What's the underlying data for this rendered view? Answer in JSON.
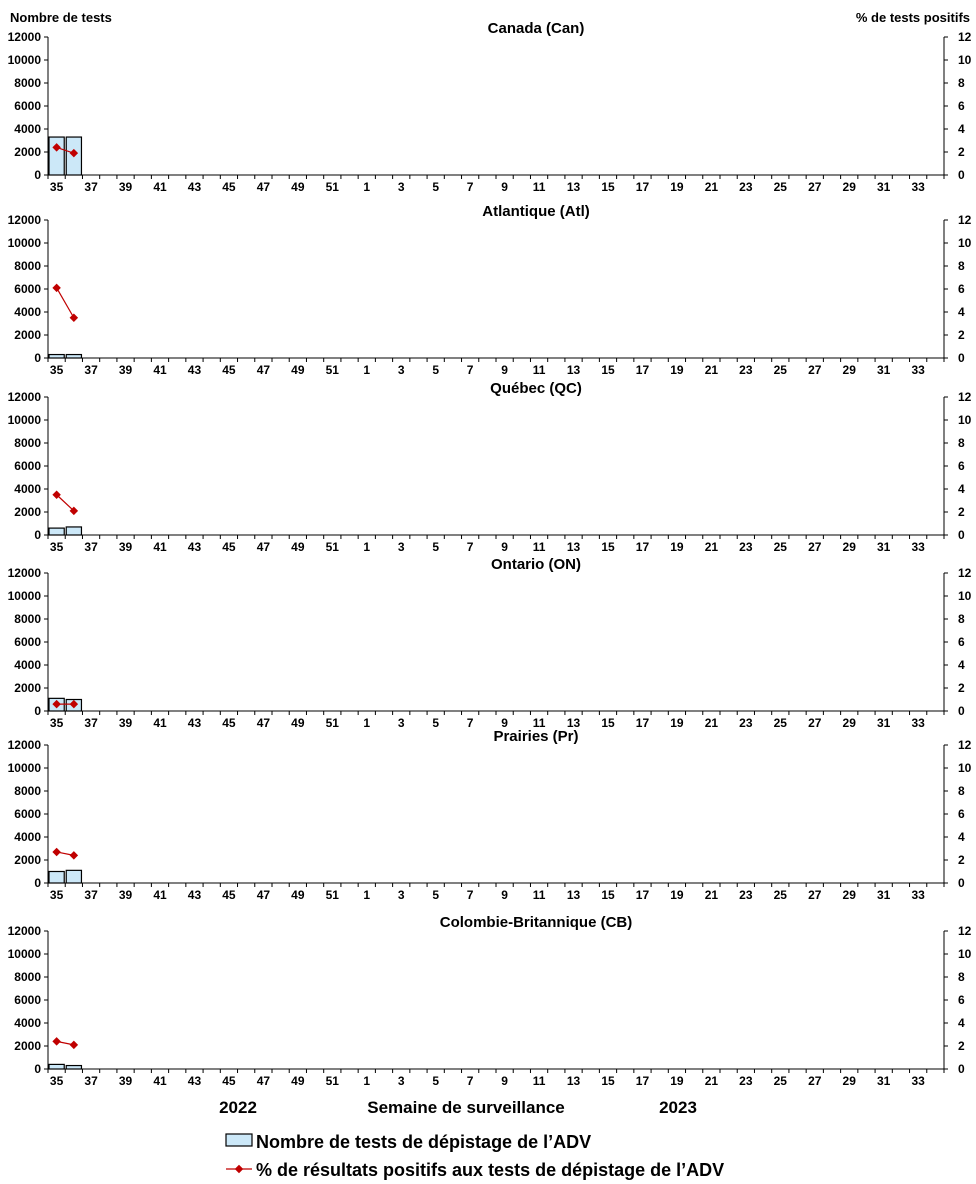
{
  "chart_data": {
    "type": "bar",
    "y_left_label": "Nombre de tests",
    "y_right_label": "% de tests positifs",
    "xlabel": "Semaine de surveillance",
    "year_labels": [
      "2022",
      "2023"
    ],
    "x_ticks": [
      "35",
      "37",
      "39",
      "41",
      "43",
      "45",
      "47",
      "49",
      "51",
      "1",
      "3",
      "5",
      "7",
      "9",
      "11",
      "13",
      "15",
      "17",
      "19",
      "21",
      "23",
      "25",
      "27",
      "29",
      "31",
      "33"
    ],
    "weeks": [
      "35",
      "36",
      "37",
      "38",
      "39",
      "40",
      "41",
      "42",
      "43",
      "44",
      "45",
      "46",
      "47",
      "48",
      "49",
      "50",
      "51",
      "52",
      "1",
      "2",
      "3",
      "4",
      "5",
      "6",
      "7",
      "8",
      "9",
      "10",
      "11",
      "12",
      "13",
      "14",
      "15",
      "16",
      "17",
      "18",
      "19",
      "20",
      "21",
      "22",
      "23",
      "24",
      "25",
      "26",
      "27",
      "28",
      "29",
      "30",
      "31",
      "32",
      "33",
      "34"
    ],
    "ylim_left": [
      0,
      12000
    ],
    "ylim_right": [
      0,
      12
    ],
    "y_left_ticks": [
      "0",
      "2000",
      "4000",
      "6000",
      "8000",
      "10000",
      "12000"
    ],
    "y_right_ticks": [
      "0",
      "2",
      "4",
      "6",
      "8",
      "10",
      "12"
    ],
    "colors": {
      "bars": "#cce8f8",
      "bar_border": "#000000",
      "line": "#c00000"
    },
    "panels": [
      {
        "title": "Canada (Can)",
        "tests": [
          3300,
          3300
        ],
        "pct_positive": [
          2.4,
          1.9
        ]
      },
      {
        "title": "Atlantique (Atl)",
        "tests": [
          300,
          300
        ],
        "pct_positive": [
          6.1,
          3.5
        ]
      },
      {
        "title": "Québec (QC)",
        "tests": [
          600,
          700
        ],
        "pct_positive": [
          3.5,
          2.1
        ]
      },
      {
        "title": "Ontario (ON)",
        "tests": [
          1100,
          1000
        ],
        "pct_positive": [
          0.6,
          0.6
        ]
      },
      {
        "title": "Prairies (Pr)",
        "tests": [
          1000,
          1100
        ],
        "pct_positive": [
          2.7,
          2.4
        ]
      },
      {
        "title": "Colombie-Britannique (CB)",
        "tests": [
          400,
          300
        ],
        "pct_positive": [
          2.4,
          2.1
        ]
      }
    ],
    "legend": [
      {
        "label": "Nombre de tests de dépistage de l’ADV",
        "type": "bar"
      },
      {
        "label": "% de résultats positifs aux tests de dépistage de l’ADV",
        "type": "line"
      }
    ],
    "grid": false
  }
}
